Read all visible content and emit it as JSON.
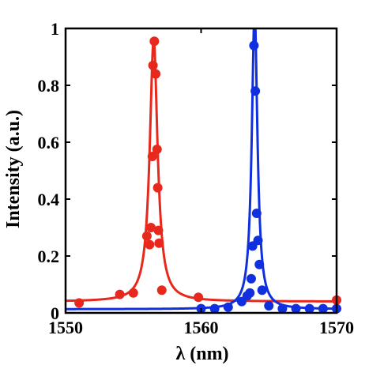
{
  "chart_data": {
    "type": "scatter",
    "title": "",
    "xlabel": "λ (nm)",
    "ylabel": "Intensity (a.u.)",
    "xlim": [
      1550,
      1570
    ],
    "ylim": [
      0,
      1
    ],
    "xticks": [
      1550,
      1560,
      1570
    ],
    "yticks": [
      0,
      0.2,
      0.4,
      0.6,
      0.8,
      1
    ],
    "ytick_labels": [
      "0",
      "0.2",
      "0.4",
      "0.6",
      "0.8",
      "1"
    ],
    "grid": false,
    "series": [
      {
        "color": "#e8281c",
        "points": {
          "x": [
            1551.0,
            1554.0,
            1555.0,
            1556.0,
            1556.2,
            1556.3,
            1556.4,
            1556.45,
            1556.55,
            1556.65,
            1556.75,
            1556.8,
            1556.85,
            1556.9,
            1557.1,
            1559.8,
            1570.0
          ],
          "y": [
            0.035,
            0.065,
            0.07,
            0.27,
            0.24,
            0.3,
            0.55,
            0.87,
            0.955,
            0.84,
            0.575,
            0.44,
            0.29,
            0.245,
            0.08,
            0.055,
            0.045
          ]
        },
        "fit": {
          "center": 1556.5,
          "hwhm": 0.35,
          "baseline": 0.04,
          "peak": 0.96
        }
      },
      {
        "color": "#1030e0",
        "points": {
          "x": [
            1560.0,
            1561.0,
            1562.0,
            1563.0,
            1563.4,
            1563.6,
            1563.7,
            1563.8,
            1563.9,
            1564.0,
            1564.1,
            1564.2,
            1564.3,
            1564.5,
            1565.0,
            1566.0,
            1567.0,
            1568.0,
            1569.0,
            1570.0
          ],
          "y": [
            0.015,
            0.015,
            0.02,
            0.04,
            0.06,
            0.07,
            0.12,
            0.235,
            0.94,
            0.78,
            0.35,
            0.255,
            0.17,
            0.08,
            0.025,
            0.015,
            0.015,
            0.015,
            0.015,
            0.015
          ]
        },
        "fit": {
          "center": 1563.95,
          "hwhm": 0.25,
          "baseline": 0.013,
          "peak": 1.06
        }
      }
    ]
  }
}
